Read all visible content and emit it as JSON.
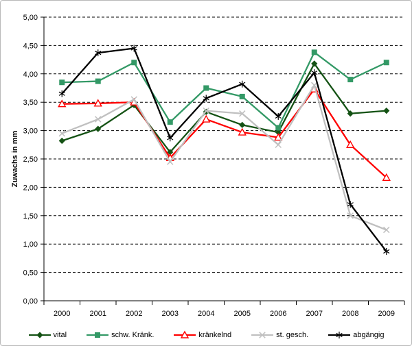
{
  "window": {
    "background": "#ffffff",
    "frame_border_color": "#b8b8b8"
  },
  "chart_data": {
    "type": "line",
    "title": "",
    "xlabel": "",
    "ylabel": "Zuwachs in mm",
    "ylim": [
      0,
      5
    ],
    "ytick_step": 0.5,
    "ytick_labels": [
      "0,00",
      "0,50",
      "1,00",
      "1,50",
      "2,00",
      "2,50",
      "3,00",
      "3,50",
      "4,00",
      "4,50",
      "5,00"
    ],
    "grid": "horizontal-dashed-black",
    "legend_position": "bottom",
    "categories": [
      "2000",
      "2001",
      "2002",
      "2003",
      "2004",
      "2005",
      "2006",
      "2007",
      "2008",
      "2009"
    ],
    "series": [
      {
        "name": "vital",
        "color": "#145214",
        "marker": "diamond",
        "values": [
          2.82,
          3.03,
          3.45,
          2.62,
          3.33,
          3.1,
          2.97,
          4.18,
          3.3,
          3.35
        ]
      },
      {
        "name": "schw. Kränk.",
        "color": "#339966",
        "marker": "square",
        "values": [
          3.85,
          3.87,
          4.2,
          3.15,
          3.75,
          3.6,
          3.05,
          4.38,
          3.9,
          4.2
        ]
      },
      {
        "name": "kränkelnd",
        "color": "#ff0000",
        "marker": "triangle-open",
        "values": [
          3.47,
          3.48,
          3.5,
          2.52,
          3.2,
          2.97,
          2.88,
          3.73,
          2.75,
          2.17
        ]
      },
      {
        "name": "st. gesch.",
        "color": "#c0c0c0",
        "marker": "x",
        "values": [
          2.95,
          3.2,
          3.55,
          2.45,
          3.35,
          3.3,
          2.75,
          3.8,
          1.5,
          1.25
        ]
      },
      {
        "name": "abgängig",
        "color": "#000000",
        "marker": "star",
        "values": [
          3.65,
          4.37,
          4.45,
          2.87,
          3.57,
          3.82,
          3.25,
          4.02,
          1.7,
          0.87
        ]
      }
    ]
  }
}
